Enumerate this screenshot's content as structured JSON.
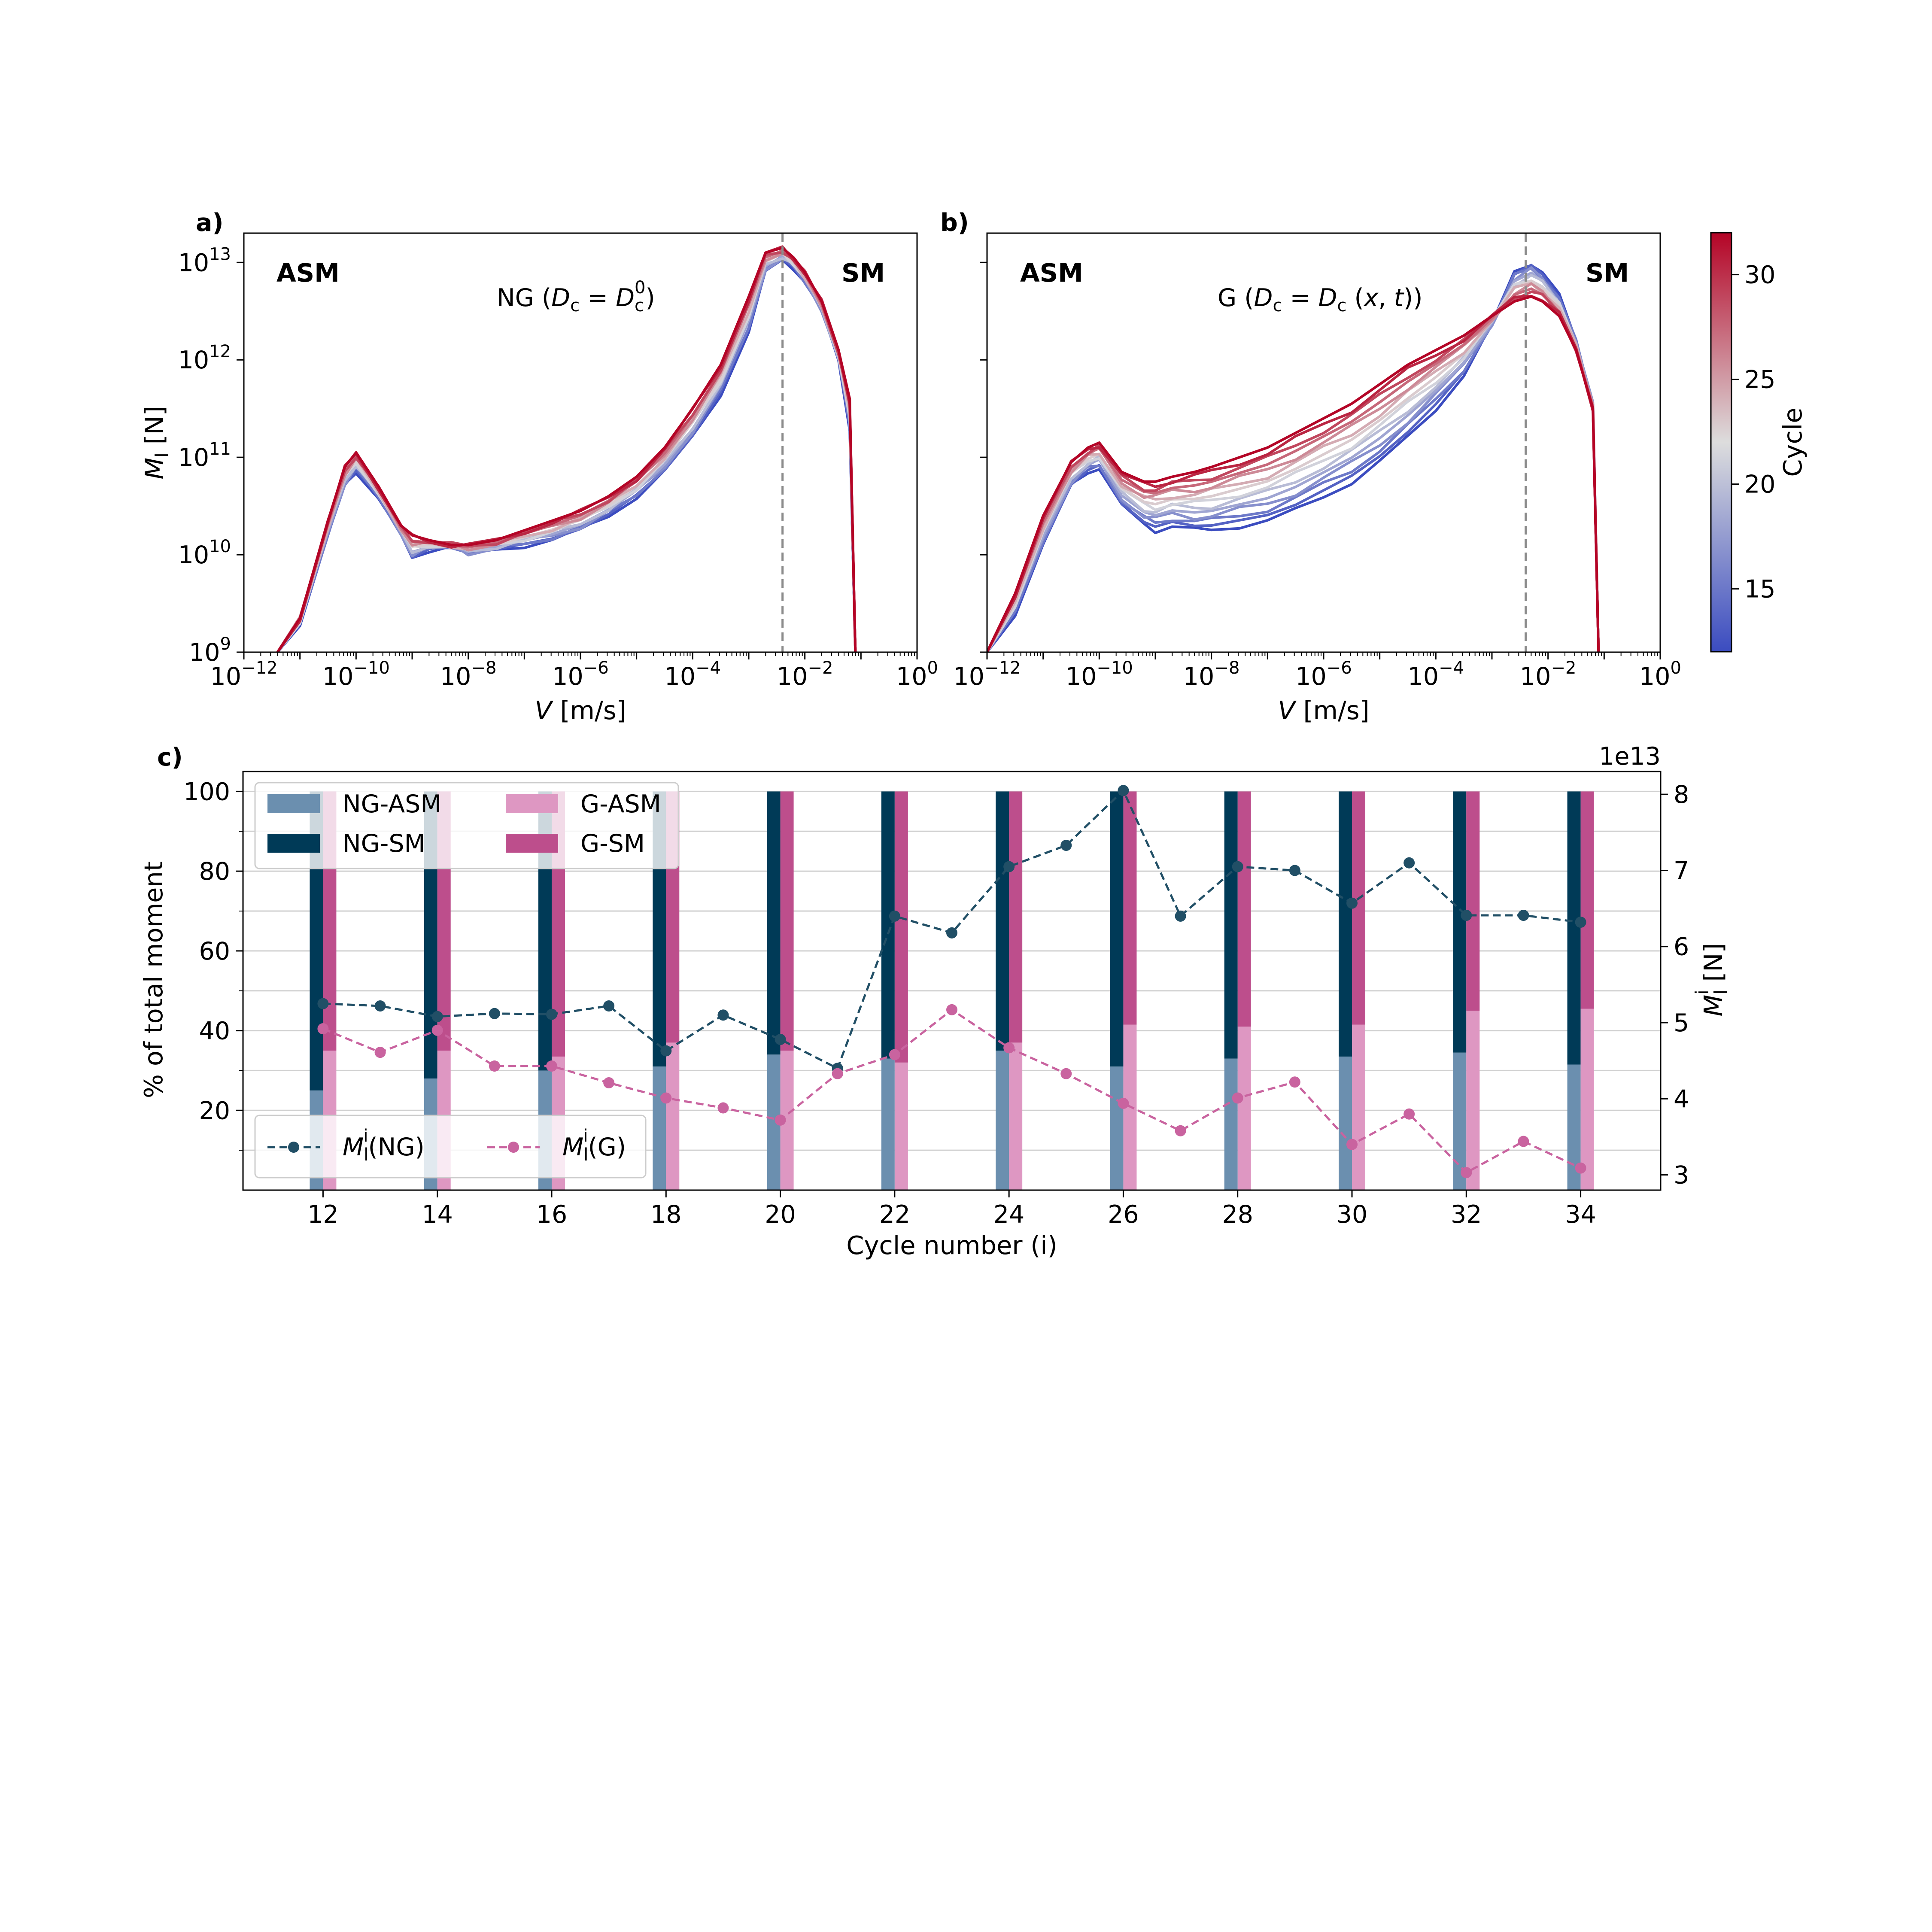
{
  "colors": {
    "ng_asm": "#6b8faf",
    "ng_sm": "#003a57",
    "g_asm": "#de97c2",
    "g_sm": "#bd4e8c",
    "line_ng": "#214f66",
    "line_g": "#c9639f",
    "vline": "#8c8c8c",
    "cmap_low": "#3b4cc0",
    "cmap_mid": "#dddddd",
    "cmap_high": "#b40426"
  },
  "panel_a": {
    "letter": "a)",
    "label_asm": "ASM",
    "label_sm": "SM",
    "annotation": "NG (D_c = D_c^0)",
    "xlabel": "V [m/s]",
    "ylabel": "M_l [N]"
  },
  "panel_b": {
    "letter": "b)",
    "label_asm": "ASM",
    "label_sm": "SM",
    "annotation": "G (D_c = D_c(x,t))",
    "xlabel": "V [m/s]"
  },
  "colorbar": {
    "label": "Cycle",
    "ticks": [
      "15",
      "20",
      "25",
      "30"
    ]
  },
  "panel_c": {
    "letter": "c)",
    "xlabel": "Cycle number (i)",
    "ylabel_left": "% of total moment",
    "ylabel_right": "M_l^i [N]",
    "offset_text": "1e13",
    "legend_bars": [
      "NG-ASM",
      "NG-SM",
      "G-ASM",
      "G-SM"
    ],
    "legend_lines": [
      "M_l^i(NG)",
      "M_l^i(G)"
    ]
  },
  "chart_data": [
    {
      "id": "a",
      "type": "line",
      "xscale": "log",
      "yscale": "log",
      "xlim": [
        1e-12,
        1
      ],
      "ylim": [
        1000000000.0,
        20000000000000.0
      ],
      "x_tick_labels": [
        "10^-12",
        "10^-10",
        "10^-8",
        "10^-6",
        "10^-4",
        "10^-2",
        "10^0"
      ],
      "y_tick_labels": [
        "10^9",
        "10^10",
        "10^11",
        "10^12",
        "10^13"
      ],
      "dashed_vline_x": 0.004,
      "cycle_range": [
        12,
        32
      ],
      "log10_V": [
        -11.4,
        -11,
        -10.5,
        -10.2,
        -10,
        -9.6,
        -9.2,
        -9,
        -8.7,
        -8.3,
        -8,
        -7.5,
        -7,
        -6.5,
        -6,
        -5.5,
        -5,
        -4.5,
        -4,
        -3.5,
        -3,
        -2.7,
        -2.4,
        -2.2,
        -2,
        -1.7,
        -1.4,
        -1.2,
        -1.1
      ],
      "log10_M_first": [
        9.0,
        9.3,
        10.2,
        10.7,
        10.85,
        10.6,
        10.2,
        9.95,
        10.05,
        10.1,
        10.0,
        10.05,
        10.1,
        10.15,
        10.25,
        10.4,
        10.6,
        10.85,
        11.2,
        11.65,
        12.3,
        12.9,
        13.02,
        12.95,
        12.8,
        12.5,
        12.0,
        11.3,
        9.0
      ],
      "log10_M_last": [
        9.0,
        9.35,
        10.35,
        10.9,
        11.05,
        10.7,
        10.3,
        10.2,
        10.15,
        10.1,
        10.1,
        10.15,
        10.25,
        10.35,
        10.45,
        10.6,
        10.8,
        11.1,
        11.5,
        11.95,
        12.65,
        13.1,
        13.15,
        13.05,
        12.9,
        12.6,
        12.1,
        11.6,
        9.0
      ]
    },
    {
      "id": "b",
      "type": "line",
      "xscale": "log",
      "yscale": "log",
      "xlim": [
        1e-12,
        1
      ],
      "ylim": [
        1000000000.0,
        20000000000000.0
      ],
      "x_tick_labels": [
        "10^-12",
        "10^-10",
        "10^-8",
        "10^-6",
        "10^-4",
        "10^-2",
        "10^0"
      ],
      "dashed_vline_x": 0.004,
      "cycle_range": [
        12,
        32
      ],
      "log10_V": [
        -12,
        -11.5,
        -11,
        -10.5,
        -10.2,
        -10,
        -9.6,
        -9.2,
        -9,
        -8.7,
        -8.3,
        -8,
        -7.5,
        -7,
        -6.5,
        -6,
        -5.5,
        -5,
        -4.5,
        -4,
        -3.5,
        -3,
        -2.6,
        -2.3,
        -2.1,
        -1.8,
        -1.5,
        -1.2,
        -1.1
      ],
      "log10_M_first": [
        9.0,
        9.4,
        10.1,
        10.7,
        10.85,
        10.9,
        10.5,
        10.3,
        10.25,
        10.3,
        10.25,
        10.25,
        10.3,
        10.35,
        10.45,
        10.6,
        10.75,
        10.95,
        11.2,
        11.5,
        11.85,
        12.35,
        12.9,
        13.0,
        12.9,
        12.65,
        12.2,
        11.55,
        9.0
      ],
      "log10_M_last": [
        9.0,
        9.6,
        10.4,
        10.95,
        11.1,
        11.15,
        10.85,
        10.75,
        10.75,
        10.8,
        10.85,
        10.9,
        11.0,
        11.1,
        11.25,
        11.4,
        11.55,
        11.75,
        11.95,
        12.1,
        12.25,
        12.45,
        12.6,
        12.65,
        12.6,
        12.45,
        12.1,
        11.5,
        9.0
      ]
    },
    {
      "id": "c",
      "type": "bar",
      "x_ticks": [
        12,
        14,
        16,
        18,
        20,
        22,
        24,
        26,
        28,
        30,
        32,
        34
      ],
      "bar_cycles": [
        12,
        14,
        16,
        18,
        20,
        22,
        24,
        26,
        28,
        30,
        32,
        34
      ],
      "ng_asm_percent": [
        25,
        28,
        30,
        31,
        34,
        33,
        35,
        31,
        33,
        33.5,
        34.5,
        31.5
      ],
      "g_asm_percent": [
        35,
        35,
        33.5,
        37,
        35,
        32,
        37,
        41.5,
        41,
        41.5,
        45,
        45.5
      ],
      "ylim_left": [
        0,
        105
      ],
      "y_ticks_left": [
        20,
        40,
        60,
        80,
        100
      ],
      "ylim_right": [
        2.8,
        8.3
      ],
      "y_ticks_right": [
        3,
        4,
        5,
        6,
        7,
        8
      ],
      "series": [
        {
          "name": "M_l^i(NG)",
          "x": [
            12,
            13,
            14,
            15,
            16,
            17,
            18,
            19,
            20,
            21,
            22,
            23,
            24,
            25,
            26,
            27,
            28,
            29,
            30,
            31,
            32,
            33,
            34
          ],
          "values": [
            5.25,
            5.22,
            5.08,
            5.12,
            5.11,
            5.22,
            4.63,
            5.1,
            4.78,
            4.4,
            6.4,
            6.18,
            7.05,
            7.33,
            8.05,
            6.4,
            7.05,
            7.0,
            6.57,
            7.1,
            6.41,
            6.41,
            6.32
          ]
        },
        {
          "name": "M_l^i(G)",
          "x": [
            12,
            13,
            14,
            15,
            16,
            17,
            18,
            19,
            20,
            21,
            22,
            23,
            24,
            25,
            26,
            27,
            28,
            29,
            30,
            31,
            32,
            33,
            34
          ],
          "values": [
            4.92,
            4.61,
            4.9,
            4.43,
            4.43,
            4.21,
            4.01,
            3.88,
            3.72,
            4.33,
            4.58,
            5.17,
            4.67,
            4.33,
            3.94,
            3.58,
            4.01,
            4.22,
            3.4,
            3.8,
            3.03,
            3.44,
            3.09
          ]
        }
      ]
    }
  ]
}
